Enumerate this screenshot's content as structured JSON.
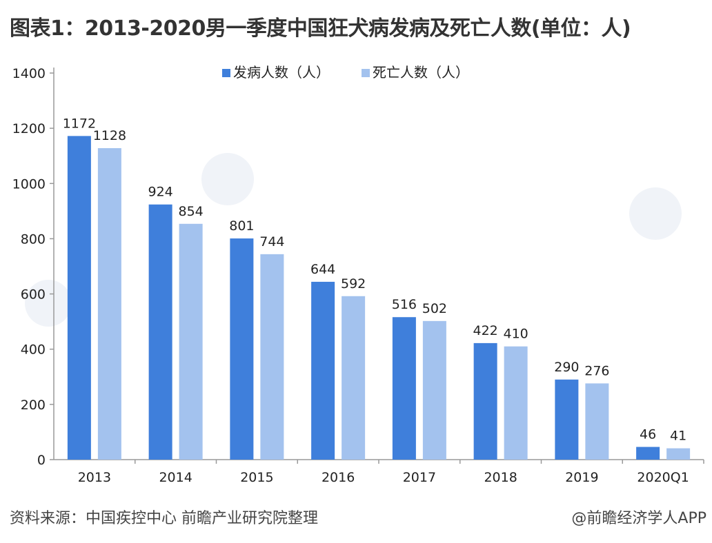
{
  "title": "图表1：2013-2020男一季度中国狂犬病发病及死亡人数(单位：人)",
  "footer": {
    "source": "资料来源：中国疾控中心 前瞻产业研究院整理",
    "brand": "@前瞻经济学人APP"
  },
  "colors": {
    "series1": "#3F7FDB",
    "series2": "#A3C2EE",
    "axis": "#999999",
    "text": "#222222"
  },
  "chart_data": {
    "type": "bar",
    "categories": [
      "2013",
      "2014",
      "2015",
      "2016",
      "2017",
      "2018",
      "2019",
      "2020Q1"
    ],
    "series": [
      {
        "name": "发病人数（人）",
        "values": [
          1172,
          924,
          801,
          644,
          516,
          422,
          290,
          46
        ]
      },
      {
        "name": "死亡人数（人）",
        "values": [
          1128,
          854,
          744,
          592,
          502,
          410,
          276,
          41
        ]
      }
    ],
    "yticks": [
      0,
      200,
      400,
      600,
      800,
      1000,
      1200,
      1400
    ],
    "ylim": [
      0,
      1400
    ],
    "grid": false,
    "legend": "top-center",
    "data_labels": true
  }
}
